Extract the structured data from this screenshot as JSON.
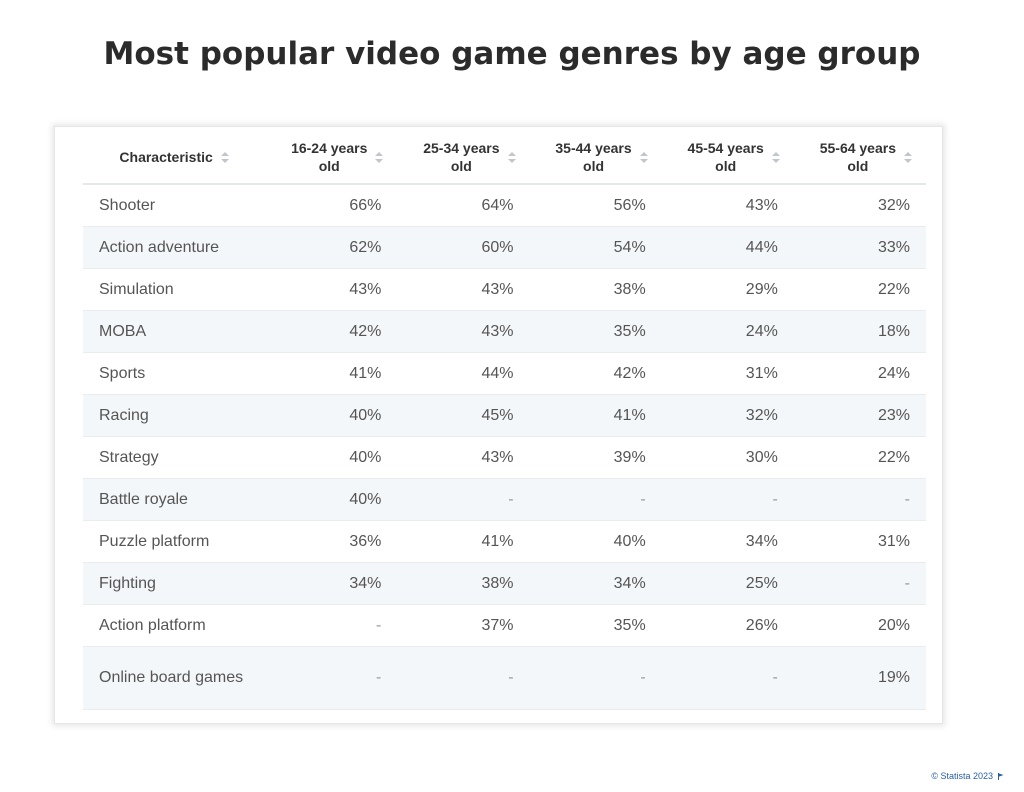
{
  "title": "Most popular video game genres by age group",
  "credit": "© Statista 2023",
  "flag_icon": "flag-icon",
  "chart_data": {
    "type": "table",
    "title": "Most popular video game genres by age group",
    "columns": [
      "Characteristic",
      "16-24 years old",
      "25-34 years old",
      "35-44 years old",
      "45-54 years old",
      "55-64 years old"
    ],
    "column_lines": [
      [
        "Characteristic"
      ],
      [
        "16-24 years",
        "old"
      ],
      [
        "25-34 years",
        "old"
      ],
      [
        "35-44 years",
        "old"
      ],
      [
        "45-54 years",
        "old"
      ],
      [
        "55-64 years",
        "old"
      ]
    ],
    "rows": [
      {
        "label": "Shooter",
        "values": [
          "66%",
          "64%",
          "56%",
          "43%",
          "32%"
        ]
      },
      {
        "label": "Action adventure",
        "values": [
          "62%",
          "60%",
          "54%",
          "44%",
          "33%"
        ]
      },
      {
        "label": "Simulation",
        "values": [
          "43%",
          "43%",
          "38%",
          "29%",
          "22%"
        ]
      },
      {
        "label": "MOBA",
        "values": [
          "42%",
          "43%",
          "35%",
          "24%",
          "18%"
        ]
      },
      {
        "label": "Sports",
        "values": [
          "41%",
          "44%",
          "42%",
          "31%",
          "24%"
        ]
      },
      {
        "label": "Racing",
        "values": [
          "40%",
          "45%",
          "41%",
          "32%",
          "23%"
        ]
      },
      {
        "label": "Strategy",
        "values": [
          "40%",
          "43%",
          "39%",
          "30%",
          "22%"
        ]
      },
      {
        "label": "Battle royale",
        "values": [
          "40%",
          "-",
          "-",
          "-",
          "-"
        ]
      },
      {
        "label": "Puzzle platform",
        "values": [
          "36%",
          "41%",
          "40%",
          "34%",
          "31%"
        ]
      },
      {
        "label": "Fighting",
        "values": [
          "34%",
          "38%",
          "34%",
          "25%",
          "-"
        ]
      },
      {
        "label": "Action platform",
        "values": [
          "-",
          "37%",
          "35%",
          "26%",
          "20%"
        ]
      },
      {
        "label": "Online board games",
        "values": [
          "-",
          "-",
          "-",
          "-",
          "19%"
        ]
      }
    ]
  },
  "colors": {
    "title": "#2b2b2b",
    "row_alt": "#f4f7fa",
    "credit": "#2a5fa6"
  }
}
